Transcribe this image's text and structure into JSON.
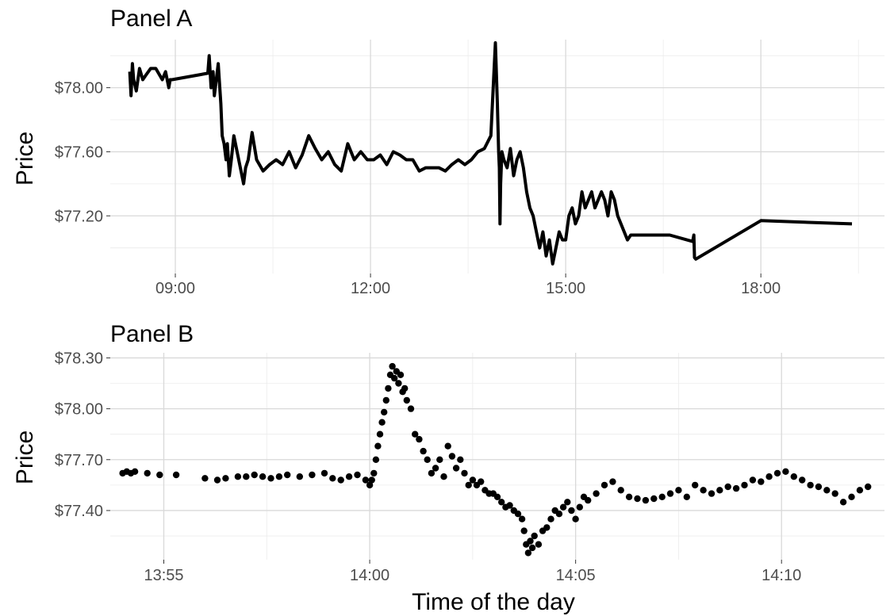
{
  "figure": {
    "xlabel": "Time of the day"
  },
  "chart_data": [
    {
      "type": "line",
      "title": "Panel A",
      "xlabel": "",
      "ylabel": "Price",
      "x_unit": "hours",
      "xlim": [
        8.0,
        19.9
      ],
      "ylim": [
        76.84,
        78.3
      ],
      "y_ticks": [
        77.2,
        77.6,
        78.0
      ],
      "y_tick_labels": [
        "$77.20",
        "$77.60",
        "$78.00"
      ],
      "x_ticks": [
        9,
        12,
        15,
        18
      ],
      "x_tick_labels": [
        "09:00",
        "12:00",
        "15:00",
        "18:00"
      ],
      "grid": true,
      "legend": "none",
      "series": [
        {
          "color": "#000000",
          "x": [
            8.3,
            8.32,
            8.34,
            8.36,
            8.4,
            8.45,
            8.5,
            8.55,
            8.62,
            8.7,
            8.8,
            8.85,
            8.9,
            8.92,
            8.95,
            9.5,
            9.52,
            9.55,
            9.58,
            9.6,
            9.63,
            9.66,
            9.7,
            9.72,
            9.75,
            9.78,
            9.8,
            9.83,
            9.86,
            9.9,
            9.95,
            10.0,
            10.05,
            10.08,
            10.12,
            10.18,
            10.25,
            10.35,
            10.45,
            10.55,
            10.65,
            10.75,
            10.85,
            10.95,
            11.05,
            11.15,
            11.25,
            11.35,
            11.45,
            11.55,
            11.65,
            11.75,
            11.85,
            11.95,
            12.05,
            12.15,
            12.25,
            12.35,
            12.45,
            12.55,
            12.65,
            12.75,
            12.85,
            12.95,
            13.05,
            13.15,
            13.25,
            13.35,
            13.45,
            13.55,
            13.65,
            13.75,
            13.85,
            13.92,
            13.95,
            13.97,
            13.98,
            13.99,
            14.0,
            14.02,
            14.05,
            14.1,
            14.15,
            14.2,
            14.25,
            14.3,
            14.35,
            14.4,
            14.45,
            14.5,
            14.55,
            14.6,
            14.65,
            14.7,
            14.75,
            14.8,
            14.85,
            14.9,
            14.95,
            15.0,
            15.05,
            15.1,
            15.15,
            15.2,
            15.25,
            15.3,
            15.35,
            15.4,
            15.45,
            15.5,
            15.55,
            15.6,
            15.65,
            15.7,
            15.75,
            15.8,
            15.85,
            15.9,
            15.95,
            16.0,
            16.05,
            16.1,
            16.6,
            16.95,
            16.97,
            16.98,
            17.0,
            18.0,
            19.4
          ],
          "y": [
            78.1,
            77.95,
            78.15,
            78.05,
            77.98,
            78.12,
            78.05,
            78.08,
            78.12,
            78.12,
            78.05,
            78.1,
            78.0,
            78.05,
            78.05,
            78.09,
            78.2,
            78.0,
            78.1,
            77.95,
            78.05,
            78.15,
            77.9,
            77.7,
            77.65,
            77.55,
            77.65,
            77.45,
            77.55,
            77.7,
            77.6,
            77.5,
            77.4,
            77.5,
            77.55,
            77.72,
            77.55,
            77.48,
            77.52,
            77.55,
            77.52,
            77.6,
            77.5,
            77.58,
            77.7,
            77.62,
            77.55,
            77.6,
            77.52,
            77.48,
            77.65,
            77.55,
            77.6,
            77.55,
            77.55,
            77.58,
            77.52,
            77.6,
            77.58,
            77.55,
            77.55,
            77.48,
            77.5,
            77.5,
            77.5,
            77.48,
            77.52,
            77.55,
            77.52,
            77.55,
            77.6,
            77.62,
            77.7,
            78.28,
            77.9,
            77.6,
            77.5,
            77.15,
            77.4,
            77.6,
            77.55,
            77.5,
            77.62,
            77.45,
            77.55,
            77.6,
            77.5,
            77.35,
            77.25,
            77.2,
            77.1,
            77.0,
            77.1,
            76.95,
            77.05,
            76.9,
            77.0,
            77.1,
            77.05,
            77.05,
            77.2,
            77.25,
            77.15,
            77.2,
            77.35,
            77.25,
            77.3,
            77.35,
            77.25,
            77.3,
            77.35,
            77.3,
            77.2,
            77.35,
            77.3,
            77.2,
            77.15,
            77.1,
            77.05,
            77.08,
            77.08,
            77.08,
            77.08,
            77.04,
            77.08,
            76.94,
            76.93,
            77.17,
            77.15
          ]
        }
      ]
    },
    {
      "type": "scatter",
      "title": "Panel B",
      "xlabel": "Time of the day",
      "ylabel": "Price",
      "x_unit": "minutes after 13:50",
      "xlim": [
        3.7,
        22.5
      ],
      "ylim": [
        77.11,
        78.33
      ],
      "y_ticks": [
        77.4,
        77.7,
        78.0,
        78.3
      ],
      "y_tick_labels": [
        "$77.40",
        "$77.70",
        "$78.00",
        "$78.30"
      ],
      "x_ticks": [
        5,
        10,
        15,
        20
      ],
      "x_tick_labels": [
        "13:55",
        "14:00",
        "14:05",
        "14:10"
      ],
      "grid": true,
      "legend": "none",
      "series": [
        {
          "color": "#000000",
          "x": [
            4.0,
            4.1,
            4.2,
            4.3,
            4.6,
            4.9,
            5.3,
            6.0,
            6.3,
            6.5,
            6.8,
            7.0,
            7.2,
            7.4,
            7.6,
            7.8,
            8.0,
            8.3,
            8.6,
            8.9,
            9.1,
            9.3,
            9.5,
            9.7,
            9.9,
            10.0,
            10.05,
            10.1,
            10.15,
            10.2,
            10.25,
            10.3,
            10.35,
            10.4,
            10.45,
            10.5,
            10.55,
            10.6,
            10.65,
            10.7,
            10.75,
            10.8,
            10.85,
            10.9,
            11.0,
            11.1,
            11.2,
            11.3,
            11.4,
            11.5,
            11.6,
            11.7,
            11.8,
            11.9,
            12.0,
            12.1,
            12.2,
            12.3,
            12.4,
            12.5,
            12.6,
            12.7,
            12.8,
            12.9,
            13.0,
            13.1,
            13.2,
            13.3,
            13.4,
            13.5,
            13.6,
            13.7,
            13.75,
            13.8,
            13.85,
            13.9,
            13.95,
            14.0,
            14.1,
            14.2,
            14.3,
            14.4,
            14.5,
            14.6,
            14.7,
            14.8,
            14.9,
            15.0,
            15.1,
            15.2,
            15.3,
            15.5,
            15.7,
            15.9,
            16.1,
            16.3,
            16.5,
            16.7,
            16.9,
            17.1,
            17.3,
            17.5,
            17.7,
            17.9,
            18.1,
            18.3,
            18.5,
            18.7,
            18.9,
            19.1,
            19.3,
            19.5,
            19.7,
            19.9,
            20.1,
            20.3,
            20.5,
            20.7,
            20.9,
            21.1,
            21.3,
            21.5,
            21.7,
            21.9,
            22.1
          ],
          "y": [
            77.62,
            77.63,
            77.62,
            77.63,
            77.62,
            77.61,
            77.61,
            77.59,
            77.58,
            77.59,
            77.6,
            77.6,
            77.61,
            77.6,
            77.59,
            77.6,
            77.61,
            77.6,
            77.61,
            77.62,
            77.59,
            77.58,
            77.6,
            77.61,
            77.58,
            77.55,
            77.58,
            77.62,
            77.7,
            77.78,
            77.85,
            77.92,
            77.98,
            78.05,
            78.12,
            78.2,
            78.25,
            78.18,
            78.22,
            78.15,
            78.2,
            78.1,
            78.12,
            78.05,
            78.0,
            77.85,
            77.82,
            77.75,
            77.7,
            77.62,
            77.65,
            77.7,
            77.6,
            77.78,
            77.72,
            77.65,
            77.7,
            77.62,
            77.55,
            77.58,
            77.55,
            77.57,
            77.52,
            77.5,
            77.5,
            77.48,
            77.45,
            77.42,
            77.43,
            77.4,
            77.38,
            77.35,
            77.28,
            77.2,
            77.15,
            77.22,
            77.18,
            77.25,
            77.2,
            77.28,
            77.3,
            77.35,
            77.4,
            77.38,
            77.42,
            77.45,
            77.4,
            77.35,
            77.42,
            77.48,
            77.46,
            77.5,
            77.55,
            77.57,
            77.52,
            77.48,
            77.47,
            77.46,
            77.47,
            77.48,
            77.5,
            77.52,
            77.48,
            77.55,
            77.52,
            77.5,
            77.52,
            77.54,
            77.53,
            77.55,
            77.58,
            77.57,
            77.6,
            77.62,
            77.63,
            77.6,
            77.58,
            77.55,
            77.54,
            77.52,
            77.5,
            77.45,
            77.48,
            77.52,
            77.54
          ]
        }
      ]
    }
  ]
}
